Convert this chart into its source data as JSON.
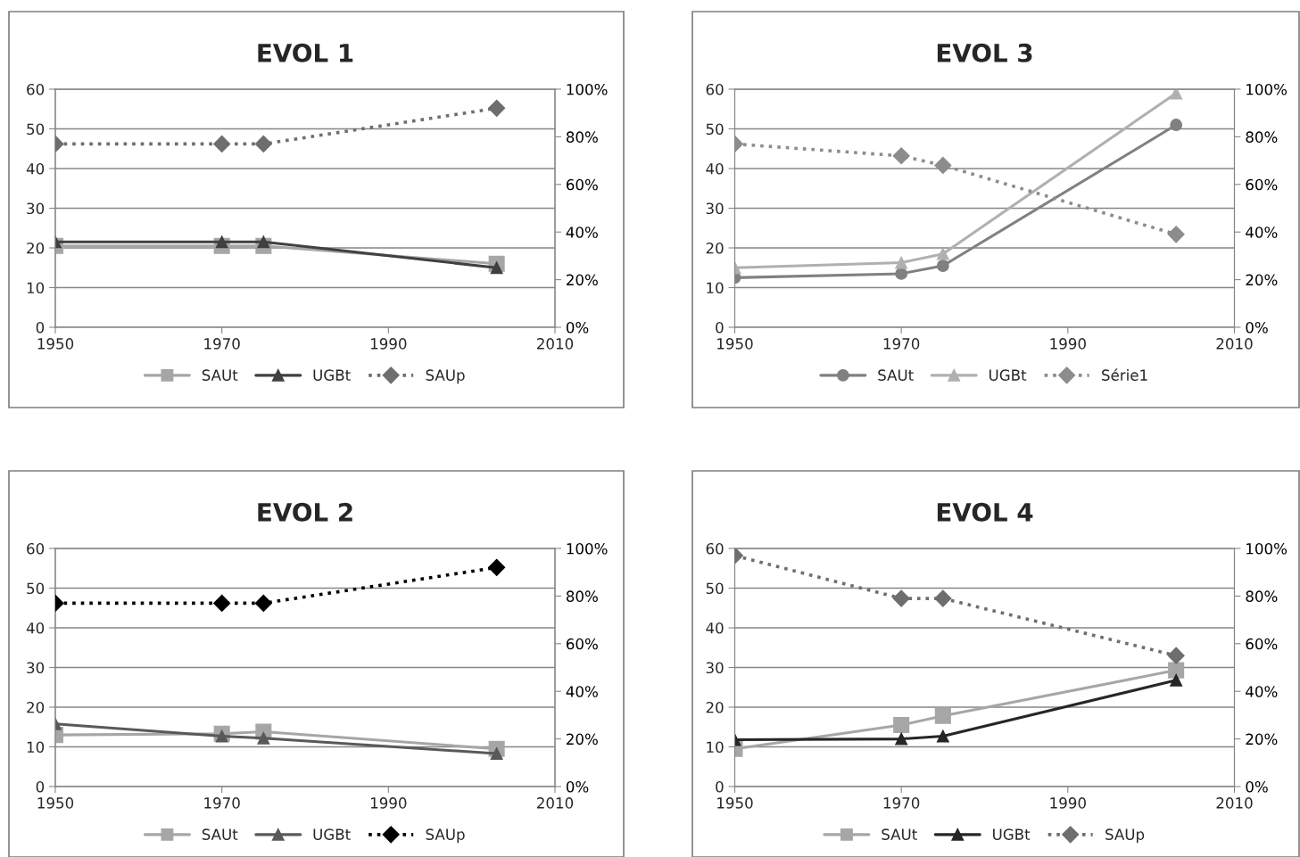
{
  "chart_data": [
    {
      "type": "line",
      "title": "EVOL 1",
      "x": [
        1950,
        1970,
        1975,
        2003
      ],
      "xlim": [
        1950,
        2010
      ],
      "xticks": [
        1950,
        1970,
        1990,
        2010
      ],
      "ylim": [
        0,
        60
      ],
      "yticks": [
        0,
        10,
        20,
        30,
        40,
        50,
        60
      ],
      "y2lim": [
        0,
        100
      ],
      "y2ticks": [
        {
          "value": 0,
          "label": "0%"
        },
        {
          "value": 20,
          "label": "20%"
        },
        {
          "value": 40,
          "label": "40%"
        },
        {
          "value": 60,
          "label": "60%"
        },
        {
          "value": 80,
          "label": "80%"
        },
        {
          "value": 100,
          "label": "100%"
        }
      ],
      "grid": "y",
      "legend": "bottom",
      "series": [
        {
          "name": "SAUt",
          "color": "#a6a6a6",
          "marker": "square",
          "line_style": "solid",
          "values": [
            20.5,
            20.5,
            20.5,
            16
          ]
        },
        {
          "name": "UGBt",
          "color": "#404040",
          "marker": "triangle",
          "line_style": "solid",
          "values": [
            21.5,
            21.5,
            21.5,
            15
          ]
        },
        {
          "name": "SAUp",
          "color": "#6e6e6e",
          "marker": "diamond",
          "line_style": "dotted",
          "axis": "y2",
          "values": [
            77,
            77,
            77,
            92
          ]
        }
      ]
    },
    {
      "type": "line",
      "title": "EVOL 3",
      "x": [
        1950,
        1970,
        1975,
        2003
      ],
      "xlim": [
        1950,
        2010
      ],
      "xticks": [
        1950,
        1970,
        1990,
        2010
      ],
      "ylim": [
        0,
        60
      ],
      "yticks": [
        0,
        10,
        20,
        30,
        40,
        50,
        60
      ],
      "y2lim": [
        0,
        100
      ],
      "y2ticks": [
        {
          "value": 0,
          "label": "0%"
        },
        {
          "value": 20,
          "label": "20%"
        },
        {
          "value": 40,
          "label": "40%"
        },
        {
          "value": 60,
          "label": "60%"
        },
        {
          "value": 80,
          "label": "80%"
        },
        {
          "value": 100,
          "label": "100%"
        }
      ],
      "grid": "y",
      "legend": "bottom",
      "series": [
        {
          "name": "SAUt",
          "color": "#808080",
          "marker": "circle",
          "line_style": "solid",
          "values": [
            12.5,
            13.5,
            15.5,
            51
          ]
        },
        {
          "name": "UGBt",
          "color": "#b0b0b0",
          "marker": "triangle",
          "line_style": "solid",
          "values": [
            15,
            16.3,
            18.5,
            59
          ]
        },
        {
          "name": "Série1",
          "color": "#8c8c8c",
          "marker": "diamond",
          "line_style": "dotted",
          "axis": "y2",
          "values": [
            77,
            72,
            68,
            39
          ]
        }
      ]
    },
    {
      "type": "line",
      "title": "EVOL 2",
      "x": [
        1950,
        1970,
        1975,
        2003
      ],
      "xlim": [
        1950,
        2010
      ],
      "xticks": [
        1950,
        1970,
        1990,
        2010
      ],
      "ylim": [
        0,
        60
      ],
      "yticks": [
        0,
        10,
        20,
        30,
        40,
        50,
        60
      ],
      "y2lim": [
        0,
        100
      ],
      "y2ticks": [
        {
          "value": 0,
          "label": "0%"
        },
        {
          "value": 20,
          "label": "20%"
        },
        {
          "value": 40,
          "label": "40%"
        },
        {
          "value": 60,
          "label": "60%"
        },
        {
          "value": 80,
          "label": "80%"
        },
        {
          "value": 100,
          "label": "100%"
        }
      ],
      "grid": "y",
      "legend": "bottom",
      "series": [
        {
          "name": "SAUt",
          "color": "#a6a6a6",
          "marker": "square",
          "line_style": "solid",
          "values": [
            13,
            13.3,
            13.8,
            9.5
          ]
        },
        {
          "name": "UGBt",
          "color": "#595959",
          "marker": "triangle",
          "line_style": "solid",
          "values": [
            15.8,
            12.7,
            12.2,
            8.3
          ]
        },
        {
          "name": "SAUp",
          "color": "#000000",
          "marker": "diamond",
          "line_style": "dotted",
          "axis": "y2",
          "values": [
            77,
            77,
            77,
            92
          ]
        }
      ]
    },
    {
      "type": "line",
      "title": "EVOL 4",
      "x": [
        1950,
        1970,
        1975,
        2003
      ],
      "xlim": [
        1950,
        2010
      ],
      "xticks": [
        1950,
        1970,
        1990,
        2010
      ],
      "ylim": [
        0,
        60
      ],
      "yticks": [
        0,
        10,
        20,
        30,
        40,
        50,
        60
      ],
      "y2lim": [
        0,
        100
      ],
      "y2ticks": [
        {
          "value": 0,
          "label": "0%"
        },
        {
          "value": 20,
          "label": "20%"
        },
        {
          "value": 40,
          "label": "40%"
        },
        {
          "value": 60,
          "label": "60%"
        },
        {
          "value": 80,
          "label": "80%"
        },
        {
          "value": 100,
          "label": "100%"
        }
      ],
      "grid": "y",
      "legend": "bottom",
      "series": [
        {
          "name": "SAUt",
          "color": "#a6a6a6",
          "marker": "square",
          "line_style": "solid",
          "values": [
            9.5,
            15.5,
            17.8,
            29.3
          ]
        },
        {
          "name": "UGBt",
          "color": "#262626",
          "marker": "triangle",
          "line_style": "solid",
          "values": [
            11.8,
            12,
            12.7,
            26.8
          ]
        },
        {
          "name": "SAUp",
          "color": "#6e6e6e",
          "marker": "diamond",
          "line_style": "dotted",
          "axis": "y2",
          "values": [
            97,
            79,
            79,
            55
          ]
        }
      ]
    }
  ]
}
